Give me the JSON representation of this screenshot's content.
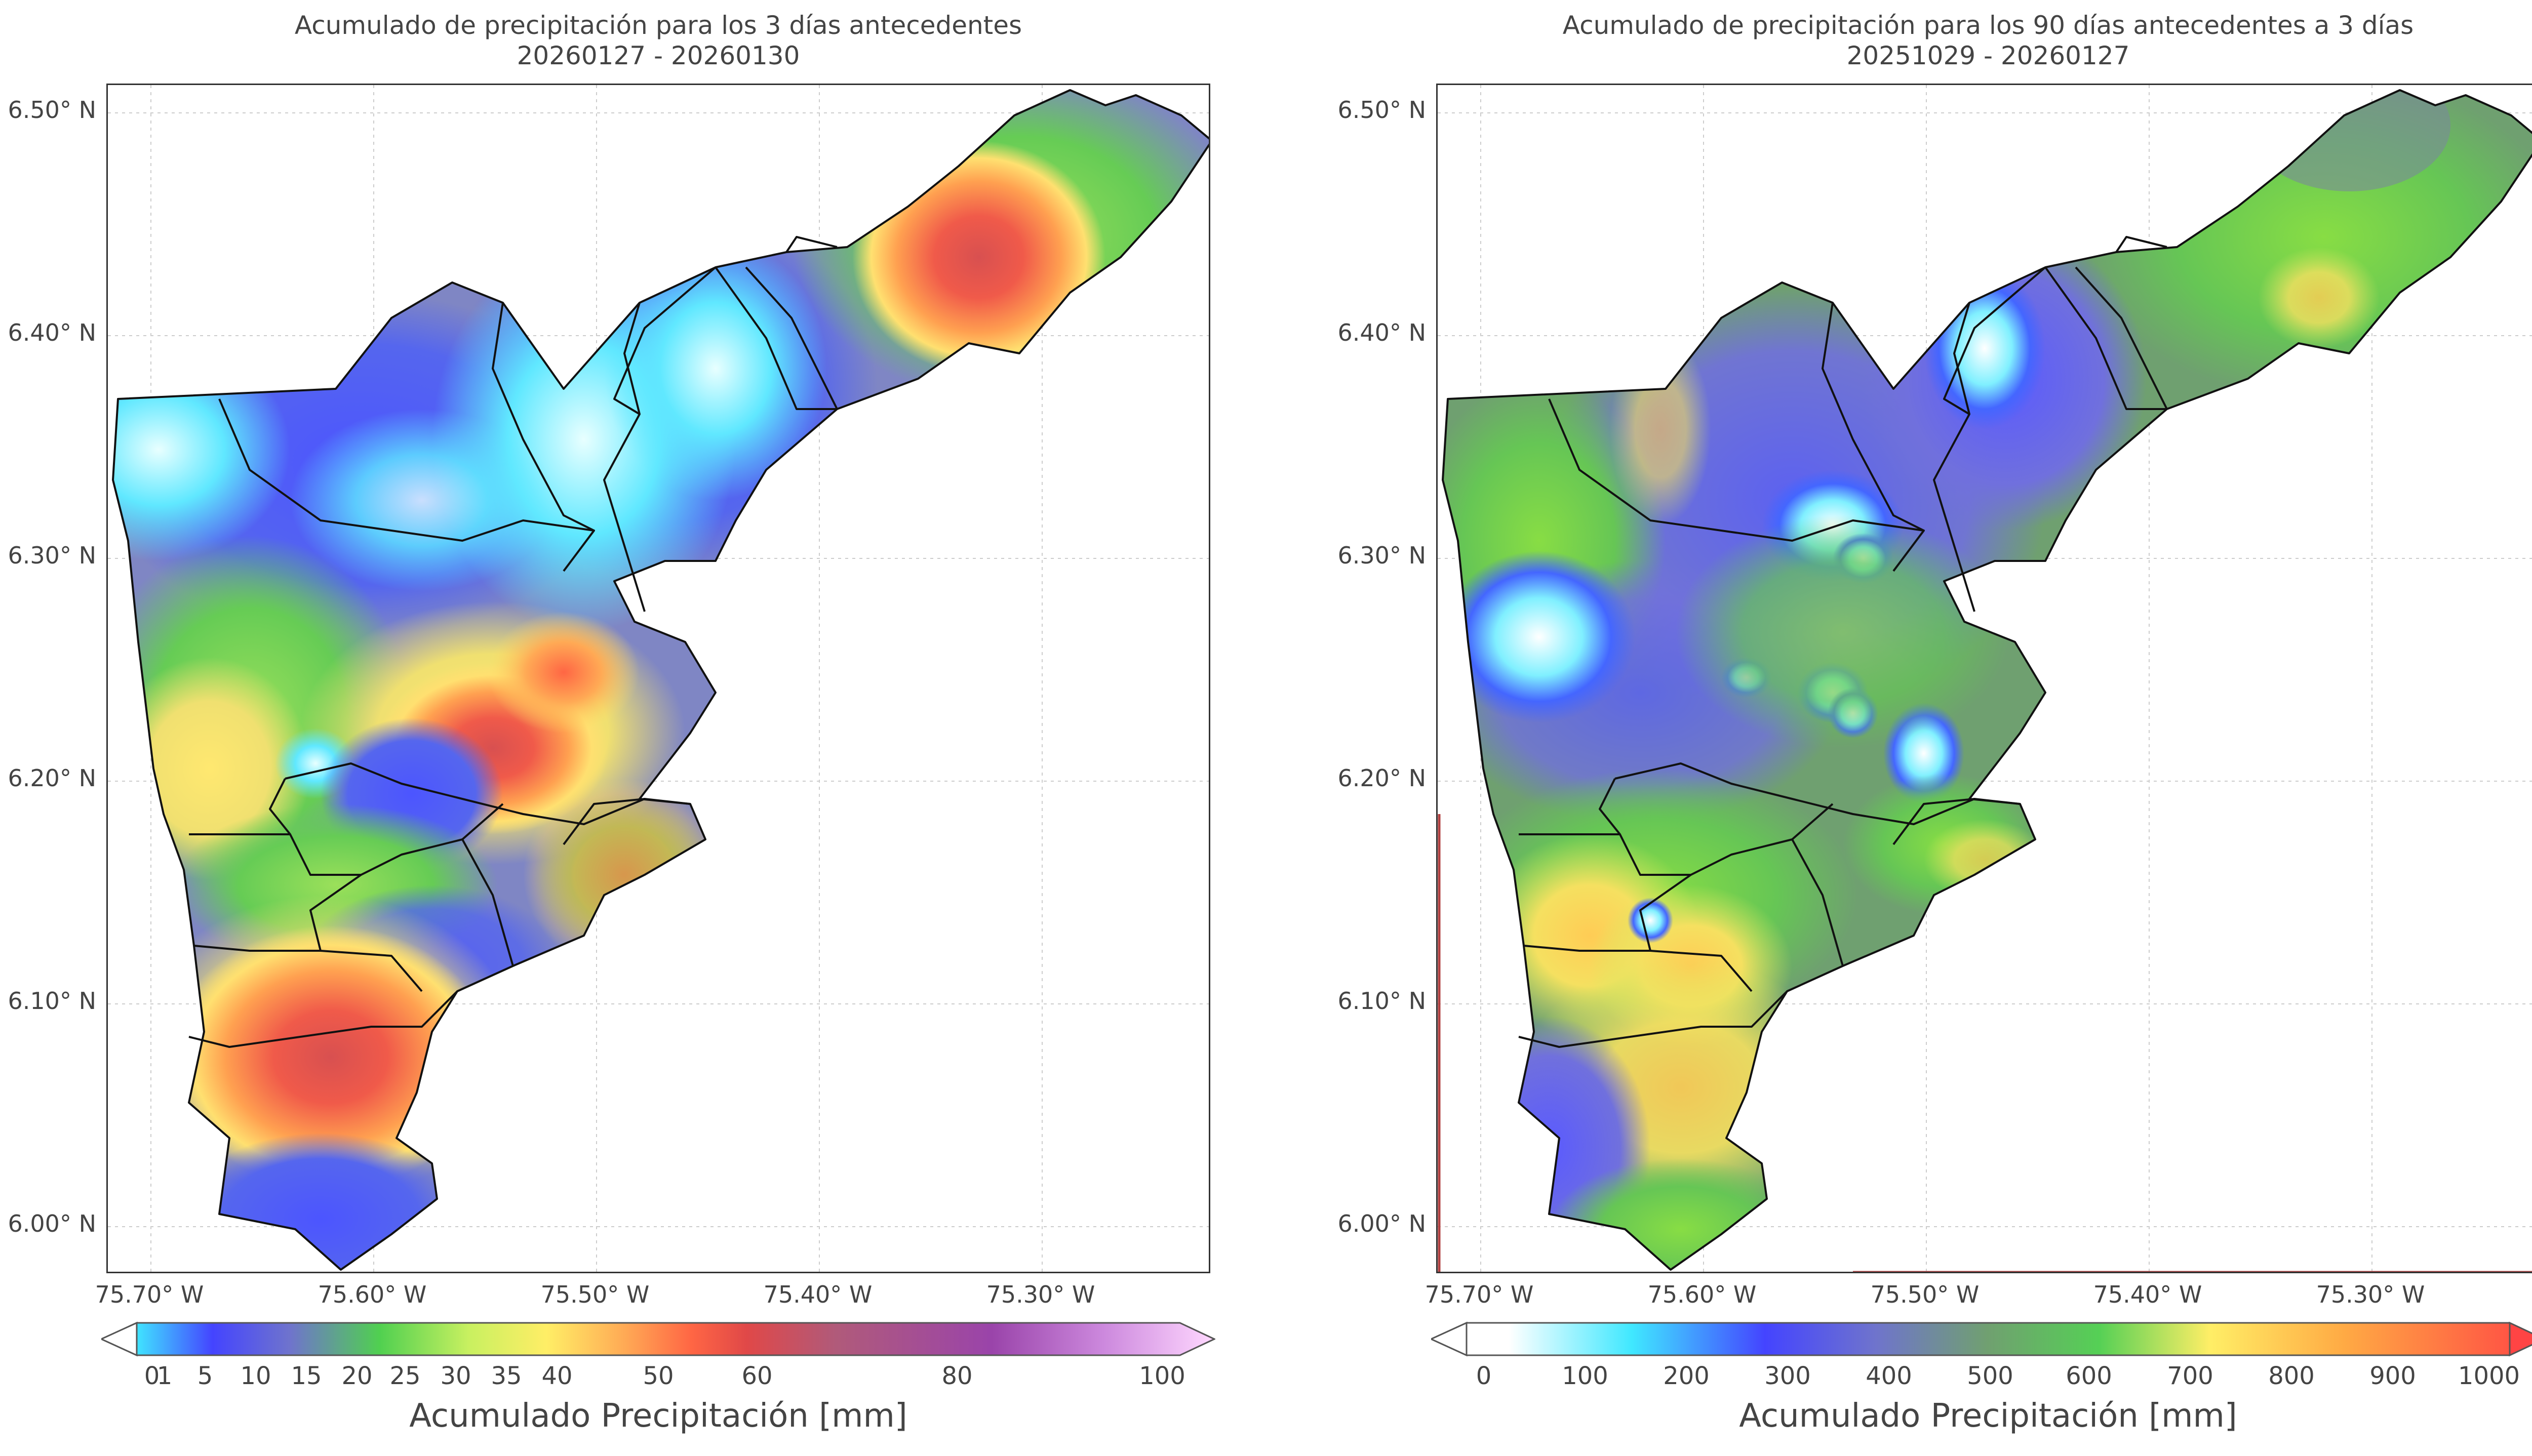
{
  "maps": [
    {
      "title": "Acumulado de precipitación para los 3 días antecedentes",
      "subtitle": "20260127 - 20260130",
      "lat_ticks": [
        "6.50° N",
        "6.40° N",
        "6.30° N",
        "6.20° N",
        "6.10° N",
        "6.00° N"
      ],
      "lon_ticks": [
        "75.70° W",
        "75.60° W",
        "75.50° W",
        "75.40° W",
        "75.30° W"
      ],
      "colorbar": {
        "label": "Acumulado Precipitación [mm]",
        "ticks": [
          "0",
          "1",
          "5",
          "10",
          "15",
          "20",
          "25",
          "30",
          "35",
          "40",
          "50",
          "60",
          "80",
          "100"
        ],
        "colors": [
          "#ffffff",
          "#40e0ff",
          "#4444ff",
          "#7777cc",
          "#50d050",
          "#ffff66",
          "#ff7744",
          "#e04444",
          "#8855aa",
          "#ffd0ff"
        ]
      }
    },
    {
      "title": "Acumulado de precipitación para los 90 días antecedentes a 3 días",
      "subtitle": "20251029 - 20260127",
      "lat_ticks": [
        "6.50° N",
        "6.40° N",
        "6.30° N",
        "6.20° N",
        "6.10° N",
        "6.00° N"
      ],
      "lon_ticks": [
        "75.70° W",
        "75.60° W",
        "75.50° W",
        "75.40° W",
        "75.30° W"
      ],
      "colorbar": {
        "label": "Acumulado Precipitación [mm]",
        "ticks": [
          "0",
          "100",
          "200",
          "300",
          "400",
          "500",
          "600",
          "700",
          "800",
          "900",
          "1000"
        ],
        "colors": [
          "#ffffff",
          "#40e0ff",
          "#4444ff",
          "#7777cc",
          "#50d050",
          "#ffff66",
          "#ffaa44",
          "#ff4444"
        ]
      }
    }
  ]
}
